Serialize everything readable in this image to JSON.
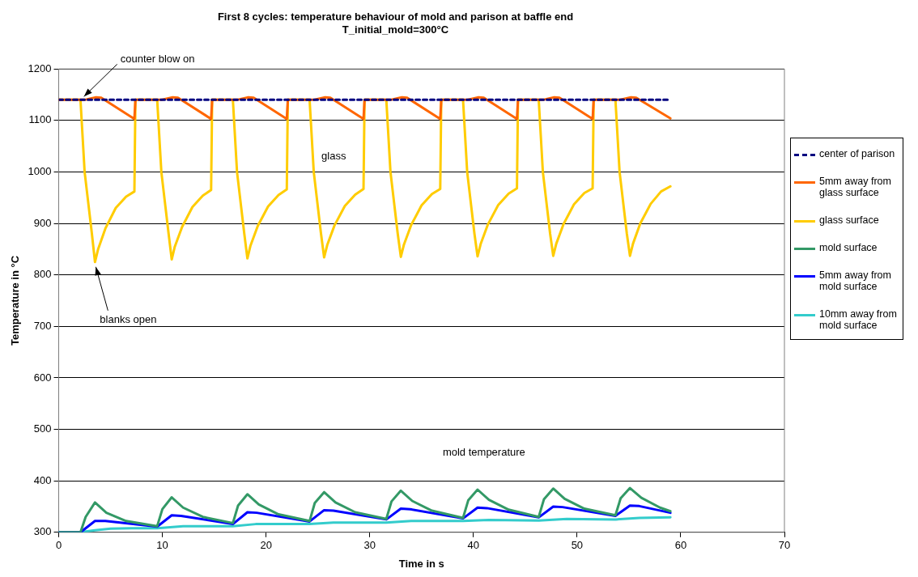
{
  "chart_data": {
    "type": "line",
    "title": "First 8 cycles: temperature behaviour of mold and parison at baffle end\nT_initial_mold=300°C",
    "xlabel": "Time in s",
    "ylabel": "Temperature in °C",
    "xlim": [
      0,
      70
    ],
    "xticks": [
      0,
      10,
      20,
      30,
      40,
      50,
      60,
      70
    ],
    "ylim": [
      300,
      1200
    ],
    "yticks": [
      300,
      400,
      500,
      600,
      700,
      800,
      900,
      1000,
      1100,
      1200
    ],
    "grid": "y",
    "legend": "right",
    "marker": "none",
    "annotations": [
      {
        "text": "counter blow on",
        "x": 2.2,
        "y": 1140
      },
      {
        "text": "blanks open",
        "x": 3.5,
        "y": 825
      },
      "glass",
      "mold temperature"
    ],
    "series": [
      {
        "name": "center of parison",
        "color": "#000080",
        "line_style": "dashed",
        "x": [
          0,
          59
        ],
        "values": [
          1140,
          1140
        ]
      },
      {
        "name": "5mm away from glass surface",
        "color": "#ff6600",
        "x": [
          0,
          2.5,
          3.6,
          4.1,
          7.3,
          7.4,
          9.9,
          11.0,
          11.5,
          14.7,
          14.8,
          17.2,
          18.3,
          18.8,
          22.0,
          22.1,
          24.6,
          25.7,
          26.2,
          29.4,
          29.5,
          32.0,
          33.1,
          33.6,
          36.8,
          36.9,
          39.4,
          40.5,
          41.0,
          44.2,
          44.3,
          46.7,
          47.8,
          48.3,
          51.5,
          51.6,
          54.1,
          55.2,
          55.7,
          59
        ],
        "values": [
          1140,
          1140,
          1145,
          1144,
          1103,
          1140,
          1140,
          1145,
          1144,
          1103,
          1140,
          1140,
          1145,
          1144,
          1103,
          1140,
          1140,
          1145,
          1144,
          1103,
          1140,
          1140,
          1145,
          1144,
          1103,
          1140,
          1140,
          1145,
          1144,
          1103,
          1140,
          1140,
          1145,
          1144,
          1103,
          1140,
          1140,
          1145,
          1144,
          1104
        ]
      },
      {
        "name": "glass surface",
        "color": "#ffcc00",
        "x": [
          0,
          2.1,
          2.5,
          3.2,
          3.5,
          3.8,
          4.5,
          5.5,
          6.5,
          7.3,
          7.4,
          9.5,
          9.9,
          10.6,
          10.9,
          11.2,
          11.9,
          12.9,
          13.9,
          14.7,
          14.8,
          16.8,
          17.2,
          17.9,
          18.2,
          18.5,
          19.2,
          20.2,
          21.2,
          22.0,
          22.1,
          24.2,
          24.6,
          25.3,
          25.6,
          25.9,
          26.6,
          27.6,
          28.6,
          29.4,
          29.5,
          31.6,
          32.0,
          32.7,
          33.0,
          33.3,
          34.0,
          35.0,
          36.0,
          36.8,
          36.9,
          39.0,
          39.4,
          40.1,
          40.4,
          40.7,
          41.4,
          42.4,
          43.4,
          44.2,
          44.3,
          46.3,
          46.7,
          47.4,
          47.7,
          48.0,
          48.7,
          49.7,
          50.7,
          51.5,
          51.6,
          53.7,
          54.1,
          54.8,
          55.1,
          55.4,
          56.1,
          57.1,
          58.1,
          59
        ],
        "values": [
          1140,
          1140,
          1000,
          880,
          825,
          850,
          890,
          930,
          952,
          962,
          1140,
          1140,
          1000,
          880,
          830,
          855,
          893,
          932,
          954,
          965,
          1140,
          1140,
          1000,
          880,
          832,
          857,
          895,
          933,
          955,
          966,
          1140,
          1140,
          1000,
          880,
          834,
          858,
          896,
          934,
          956,
          967,
          1140,
          1140,
          1000,
          880,
          835,
          859,
          897,
          935,
          957,
          967,
          1140,
          1140,
          1000,
          880,
          836,
          860,
          898,
          936,
          958,
          968,
          1140,
          1140,
          1000,
          880,
          837,
          861,
          899,
          937,
          959,
          968,
          1140,
          1140,
          1000,
          880,
          837,
          861,
          900,
          938,
          962,
          972
        ]
      },
      {
        "name": "mold surface",
        "color": "#339966",
        "x": [
          0,
          2.1,
          2.6,
          3.5,
          4.6,
          6.5,
          9.5,
          10.0,
          10.9,
          12.0,
          13.9,
          16.8,
          17.3,
          18.2,
          19.3,
          21.2,
          24.2,
          24.7,
          25.6,
          26.7,
          28.6,
          31.6,
          32.1,
          33.0,
          34.1,
          36.0,
          39.0,
          39.5,
          40.4,
          41.5,
          43.4,
          46.3,
          46.8,
          47.7,
          48.8,
          50.7,
          53.7,
          54.2,
          55.1,
          56.2,
          58.0,
          59
        ],
        "values": [
          300,
          300,
          330,
          358,
          338,
          322,
          312,
          345,
          368,
          348,
          330,
          318,
          352,
          374,
          354,
          335,
          322,
          357,
          378,
          358,
          339,
          326,
          360,
          381,
          361,
          342,
          328,
          362,
          383,
          363,
          344,
          330,
          364,
          385,
          365,
          346,
          333,
          366,
          386,
          367,
          348,
          341
        ]
      },
      {
        "name": "5mm away from mold surface",
        "color": "#0000ff",
        "x": [
          0,
          2.1,
          3.5,
          4.5,
          9.5,
          10.9,
          11.8,
          16.8,
          18.2,
          19.1,
          24.2,
          25.6,
          26.5,
          31.6,
          33.0,
          33.9,
          39.0,
          40.4,
          41.3,
          46.3,
          47.7,
          48.6,
          53.7,
          55.1,
          56.0,
          59
        ],
        "values": [
          300,
          300,
          322,
          322,
          311,
          333,
          332,
          316,
          339,
          338,
          321,
          343,
          342,
          325,
          346,
          345,
          327,
          348,
          347,
          329,
          350,
          349,
          332,
          352,
          351,
          338
        ]
      },
      {
        "name": "10mm away from mold surface",
        "color": "#33cccc",
        "x": [
          0,
          2.0,
          3.5,
          5,
          7,
          9.5,
          12,
          16.8,
          19,
          24.2,
          26.5,
          31.6,
          34,
          39,
          41.5,
          46.3,
          49,
          53.7,
          56,
          59
        ],
        "values": [
          300,
          300,
          304,
          307,
          308,
          308,
          312,
          312,
          316,
          316,
          319,
          319,
          322,
          322,
          324,
          323,
          326,
          325,
          328,
          329
        ]
      }
    ]
  }
}
